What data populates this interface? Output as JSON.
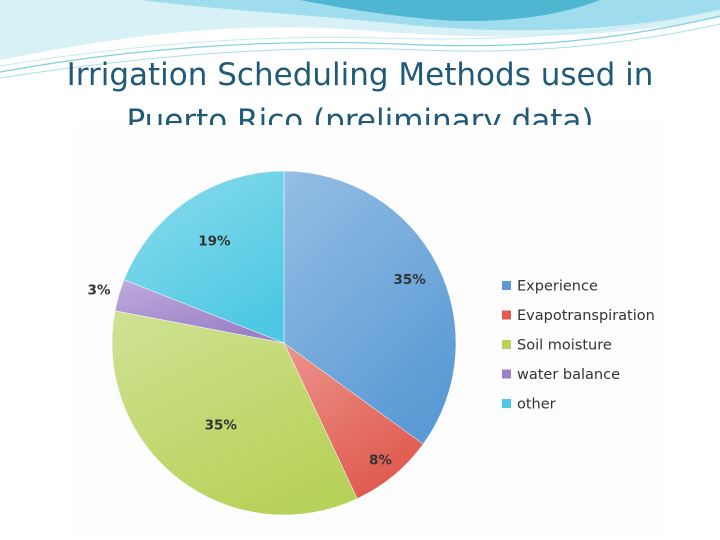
{
  "slide": {
    "title_line1": "Irrigation Scheduling Methods used in",
    "title_line2": "Puerto Rico (preliminary data)"
  },
  "colors": {
    "title": "#1f5a78",
    "wave_light": "#bfe6ee",
    "wave_mid": "#7ecfe0",
    "wave_dark": "#3aa9c4"
  },
  "chart_data": {
    "type": "pie",
    "title": "",
    "legend_position": "right",
    "slices": [
      {
        "label": "Experience",
        "value": 35,
        "display": "35%",
        "color": "#5b9bd5"
      },
      {
        "label": "Evapotranspiration",
        "value": 8,
        "display": "8%",
        "color": "#e05a4f"
      },
      {
        "label": "Soil moisture",
        "value": 35,
        "display": "35%",
        "color": "#b7d25a"
      },
      {
        "label": "water balance",
        "value": 3,
        "display": "3%",
        "color": "#9b7fc8"
      },
      {
        "label": "other",
        "value": 19,
        "display": "19%",
        "color": "#4fc9e3"
      }
    ]
  }
}
